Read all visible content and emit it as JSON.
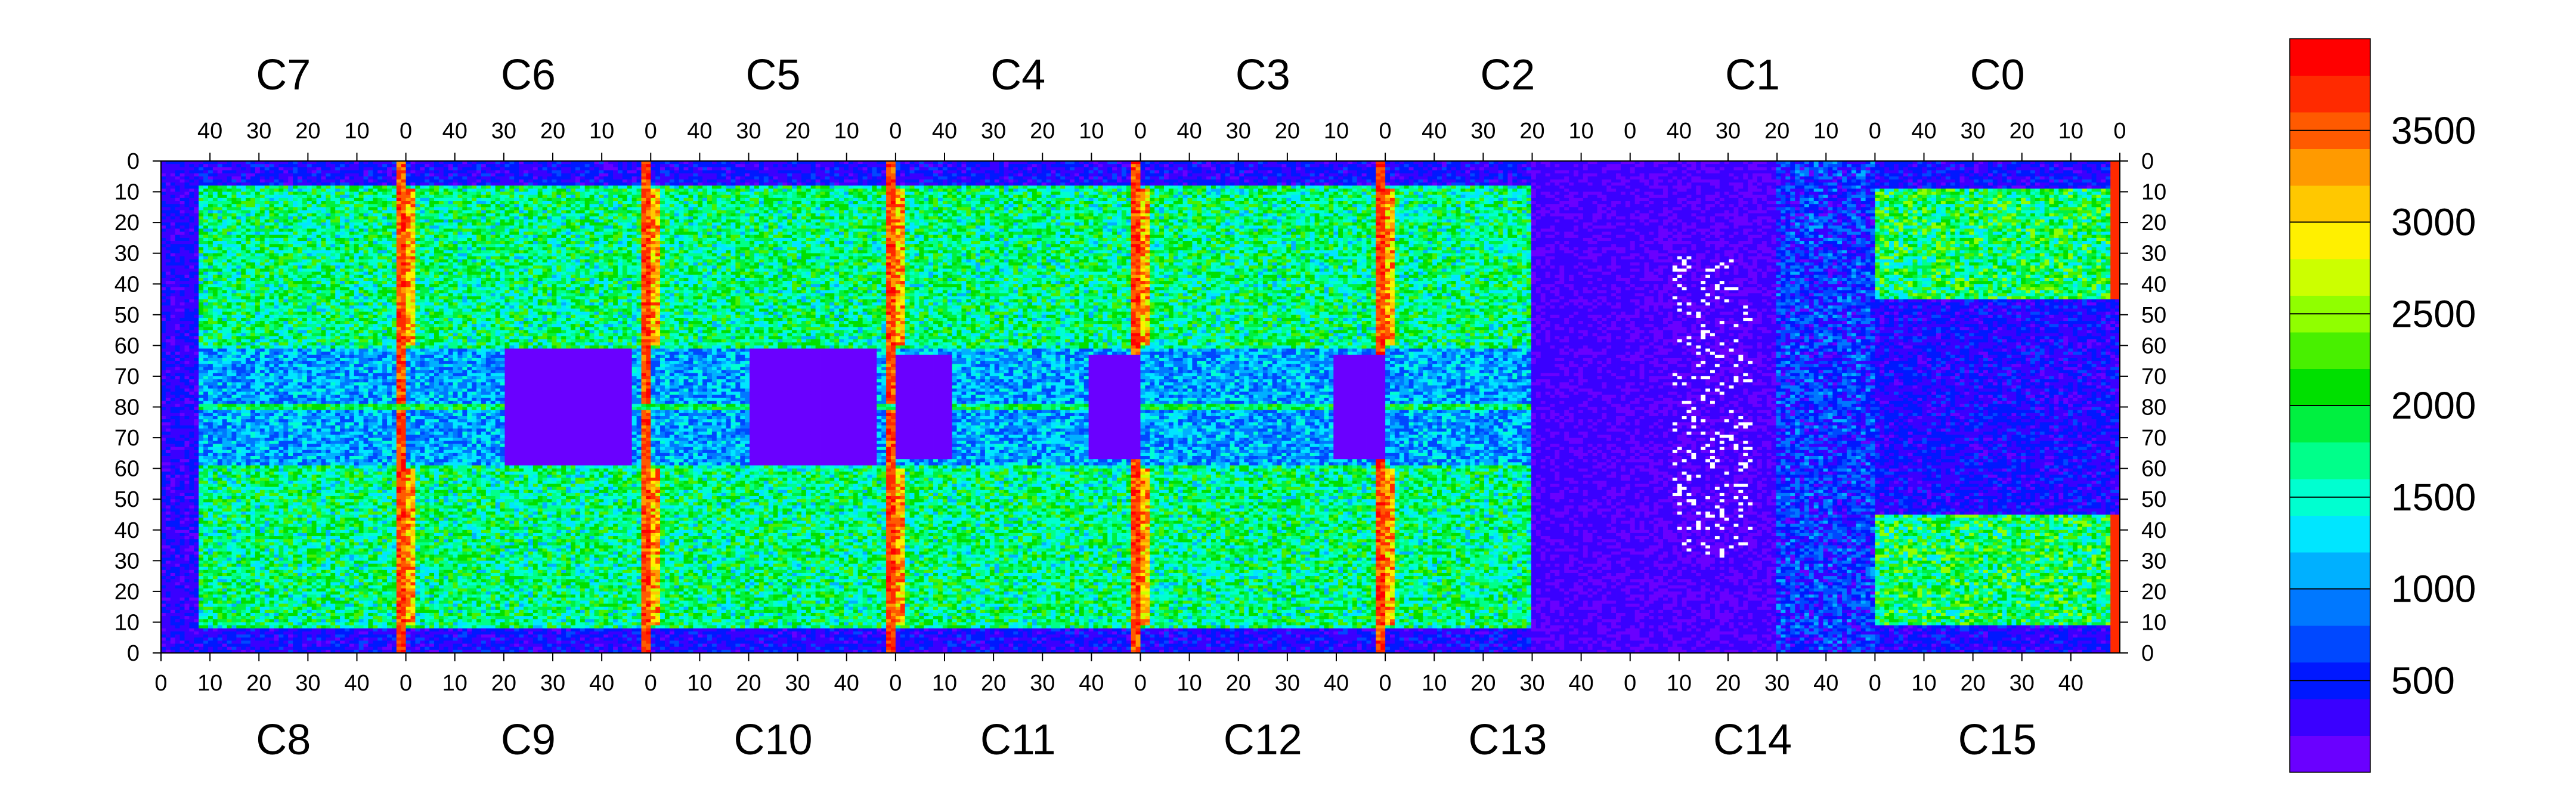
{
  "chart_data": {
    "type": "heatmap",
    "title": "",
    "xlabel": "",
    "ylabel": "",
    "top_chip_labels": [
      "C7",
      "C6",
      "C5",
      "C4",
      "C3",
      "C2",
      "C1",
      "C0"
    ],
    "bottom_chip_labels": [
      "C8",
      "C9",
      "C10",
      "C11",
      "C12",
      "C13",
      "C14",
      "C15"
    ],
    "top_x_tick_labels": [
      "40",
      "30",
      "20",
      "10",
      "0"
    ],
    "bottom_x_tick_labels": [
      "0",
      "10",
      "20",
      "30",
      "40"
    ],
    "left_y_tick_labels": [
      "0",
      "10",
      "20",
      "30",
      "40",
      "50",
      "60",
      "70",
      "80",
      "70",
      "60",
      "50",
      "40",
      "30",
      "20",
      "10",
      "0"
    ],
    "right_y_tick_labels": [
      "0",
      "10",
      "20",
      "30",
      "40",
      "50",
      "60",
      "70",
      "80",
      "70",
      "60",
      "50",
      "40",
      "30",
      "20",
      "10",
      "0"
    ],
    "colorbar": {
      "range": [
        0,
        4000
      ],
      "labels": [
        "500",
        "1000",
        "1500",
        "2000",
        "2500",
        "3000",
        "3500"
      ],
      "colors": [
        "#6a00ff",
        "#3a00ff",
        "#0018ff",
        "#0048ff",
        "#0078ff",
        "#00b0ff",
        "#00e6ff",
        "#00ffd0",
        "#00ff8a",
        "#00f040",
        "#00e000",
        "#48f000",
        "#90ff00",
        "#ccff00",
        "#fff000",
        "#ffc800",
        "#ff9a00",
        "#ff5a00",
        "#ff2a00",
        "#ff0000"
      ]
    },
    "series_description_values": {
      "background_low": 150,
      "chip_body_mid": 1500,
      "column_edge_high": 3600,
      "dead_pixels_present": true
    }
  }
}
